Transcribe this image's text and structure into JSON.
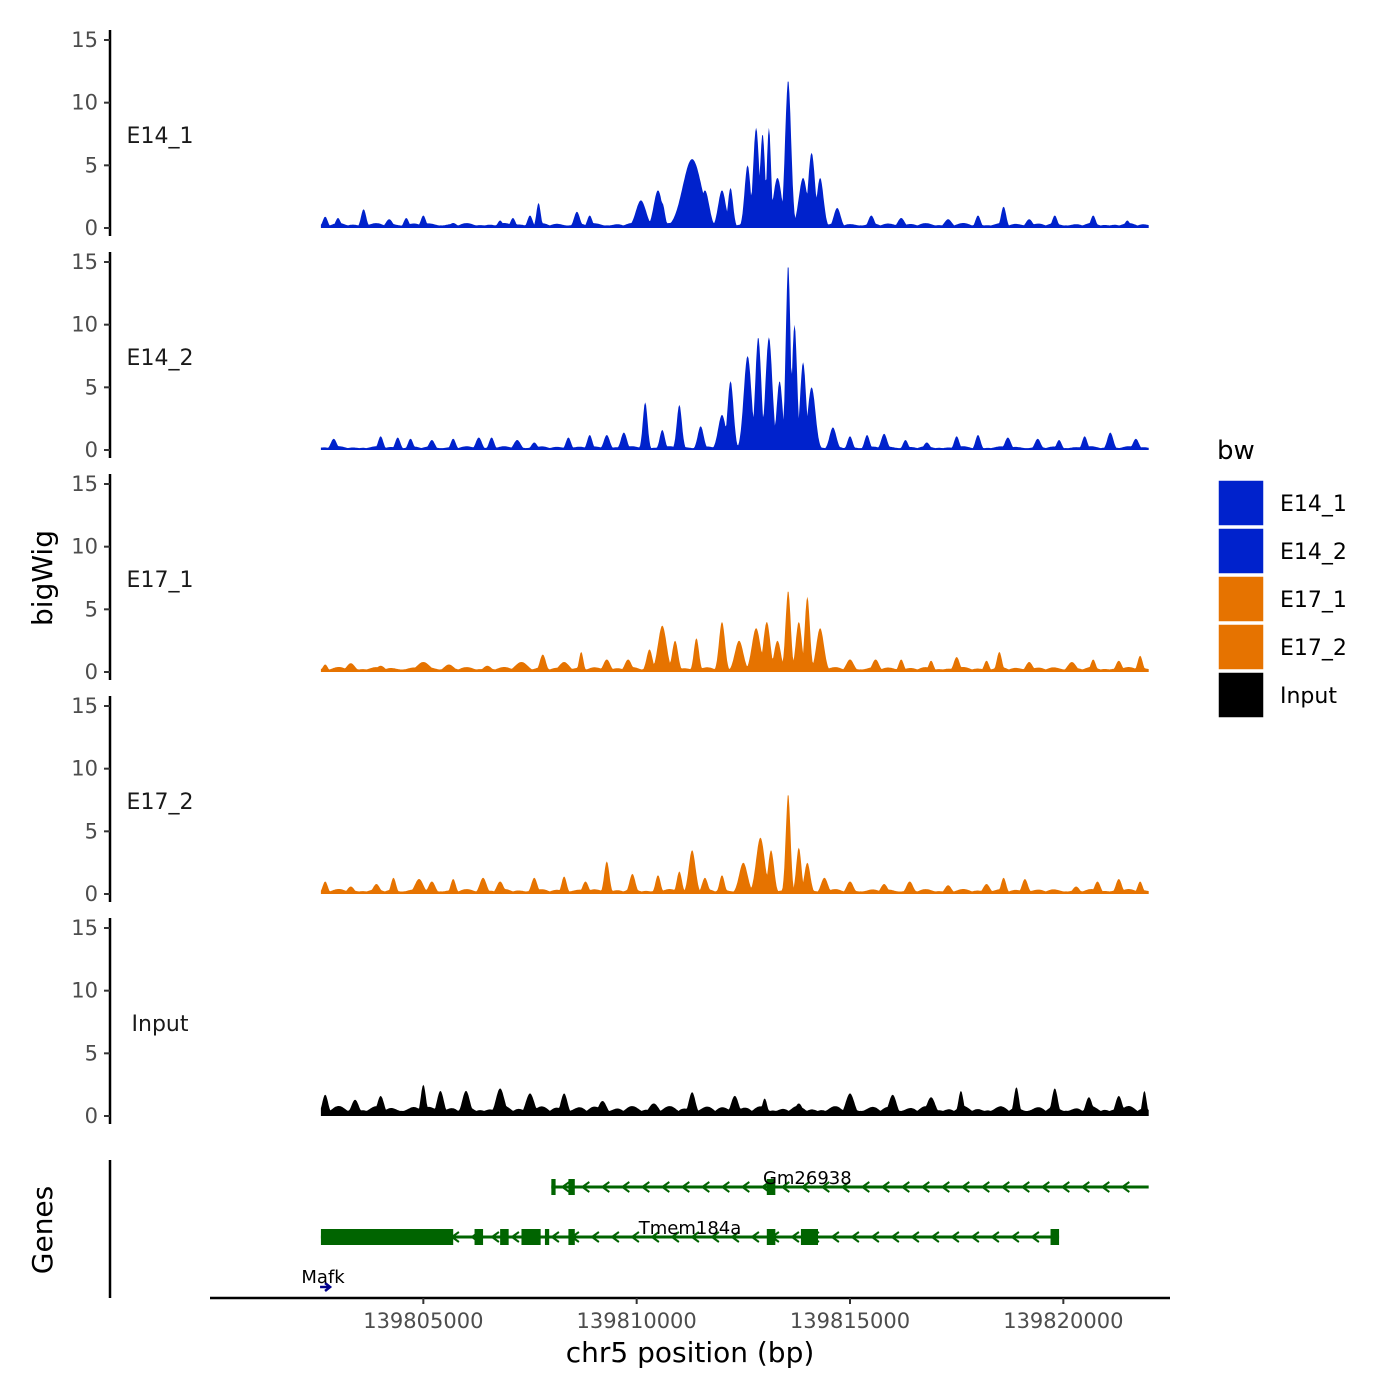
{
  "chart_data": {
    "type": "area",
    "title": "",
    "ylabel": "bigWig",
    "xlabel": "chr5 position (bp)",
    "genes_label": "Genes",
    "xlim": [
      139800000,
      139822500
    ],
    "data_xlim": [
      139802600,
      139822000
    ],
    "ylim": [
      0,
      15
    ],
    "y_ticks": [
      0,
      5,
      10,
      15
    ],
    "y_tick_labels": [
      "0",
      "5",
      "10",
      "15"
    ],
    "x_ticks": [
      139805000,
      139810000,
      139815000,
      139820000
    ],
    "x_tick_labels": [
      "139805000",
      "139810000",
      "139815000",
      "139820000"
    ],
    "tracks": [
      {
        "name": "E14_1",
        "color": "#0022CC",
        "baseline": 0.4,
        "peaks": [
          [
            139802700,
            0.9,
            60
          ],
          [
            139803000,
            0.8,
            60
          ],
          [
            139803600,
            1.5,
            60
          ],
          [
            139804200,
            0.7,
            80
          ],
          [
            139804600,
            0.8,
            60
          ],
          [
            139805000,
            1.0,
            60
          ],
          [
            139805700,
            0.4,
            90
          ],
          [
            139806800,
            0.6,
            60
          ],
          [
            139807100,
            0.8,
            60
          ],
          [
            139807500,
            1.0,
            60
          ],
          [
            139807700,
            2.0,
            50
          ],
          [
            139808600,
            1.3,
            70
          ],
          [
            139808900,
            1.0,
            60
          ],
          [
            139810100,
            2.2,
            120
          ],
          [
            139810500,
            3.0,
            100
          ],
          [
            139810600,
            2.0,
            60
          ],
          [
            139811300,
            5.5,
            220
          ],
          [
            139811600,
            3.0,
            100
          ],
          [
            139812000,
            3.0,
            90
          ],
          [
            139812200,
            3.2,
            60
          ],
          [
            139812600,
            5.0,
            70
          ],
          [
            139812800,
            8.0,
            70
          ],
          [
            139812950,
            7.5,
            60
          ],
          [
            139813100,
            8.0,
            50
          ],
          [
            139813300,
            4.0,
            100
          ],
          [
            139813550,
            11.8,
            70
          ],
          [
            139813900,
            4.0,
            100
          ],
          [
            139814100,
            6.0,
            80
          ],
          [
            139814300,
            4.0,
            80
          ],
          [
            139814700,
            1.6,
            80
          ],
          [
            139815500,
            1.0,
            70
          ],
          [
            139816200,
            0.8,
            80
          ],
          [
            139817300,
            0.7,
            90
          ],
          [
            139818000,
            1.0,
            60
          ],
          [
            139818600,
            1.7,
            60
          ],
          [
            139819200,
            0.7,
            80
          ],
          [
            139819800,
            1.0,
            60
          ],
          [
            139820700,
            1.0,
            60
          ],
          [
            139821500,
            0.6,
            60
          ]
        ]
      },
      {
        "name": "E14_2",
        "color": "#0022CC",
        "baseline": 0.3,
        "peaks": [
          [
            139802900,
            0.9,
            70
          ],
          [
            139804000,
            1.1,
            60
          ],
          [
            139804400,
            1.0,
            60
          ],
          [
            139804700,
            0.9,
            60
          ],
          [
            139805200,
            0.8,
            70
          ],
          [
            139805700,
            0.9,
            60
          ],
          [
            139806300,
            1.0,
            70
          ],
          [
            139806600,
            1.0,
            60
          ],
          [
            139807200,
            0.8,
            80
          ],
          [
            139807600,
            0.6,
            70
          ],
          [
            139808400,
            1.0,
            60
          ],
          [
            139808900,
            1.2,
            60
          ],
          [
            139809300,
            1.2,
            70
          ],
          [
            139809700,
            1.4,
            70
          ],
          [
            139810200,
            3.8,
            55
          ],
          [
            139810600,
            1.6,
            60
          ],
          [
            139811000,
            3.6,
            60
          ],
          [
            139811500,
            1.9,
            70
          ],
          [
            139812000,
            2.8,
            90
          ],
          [
            139812200,
            5.5,
            70
          ],
          [
            139812600,
            7.5,
            90
          ],
          [
            139812850,
            9.0,
            70
          ],
          [
            139813100,
            9.0,
            80
          ],
          [
            139813350,
            5.5,
            70
          ],
          [
            139813550,
            14.8,
            55
          ],
          [
            139813700,
            10.0,
            60
          ],
          [
            139813900,
            7.0,
            70
          ],
          [
            139814100,
            5.0,
            90
          ],
          [
            139814600,
            1.8,
            80
          ],
          [
            139815000,
            1.1,
            60
          ],
          [
            139815400,
            1.2,
            60
          ],
          [
            139815800,
            1.3,
            70
          ],
          [
            139816300,
            0.8,
            60
          ],
          [
            139816800,
            0.6,
            70
          ],
          [
            139817500,
            1.1,
            60
          ],
          [
            139818000,
            1.2,
            60
          ],
          [
            139818700,
            1.0,
            70
          ],
          [
            139819400,
            0.9,
            70
          ],
          [
            139819900,
            0.8,
            60
          ],
          [
            139820500,
            1.1,
            60
          ],
          [
            139821100,
            1.4,
            70
          ],
          [
            139821700,
            0.9,
            70
          ]
        ]
      },
      {
        "name": "E17_1",
        "color": "#E67300",
        "baseline": 0.4,
        "peaks": [
          [
            139802700,
            0.6,
            60
          ],
          [
            139803300,
            0.7,
            100
          ],
          [
            139804000,
            0.5,
            100
          ],
          [
            139805000,
            0.8,
            150
          ],
          [
            139805600,
            0.6,
            120
          ],
          [
            139806500,
            0.5,
            100
          ],
          [
            139807300,
            0.8,
            150
          ],
          [
            139807800,
            1.4,
            70
          ],
          [
            139808300,
            0.8,
            120
          ],
          [
            139808700,
            1.6,
            50
          ],
          [
            139809300,
            1.0,
            80
          ],
          [
            139809800,
            1.0,
            80
          ],
          [
            139810300,
            1.8,
            70
          ],
          [
            139810600,
            3.7,
            100
          ],
          [
            139810900,
            2.5,
            70
          ],
          [
            139811400,
            2.7,
            60
          ],
          [
            139812000,
            4.0,
            70
          ],
          [
            139812400,
            2.5,
            100
          ],
          [
            139812800,
            3.5,
            100
          ],
          [
            139813050,
            4.0,
            80
          ],
          [
            139813300,
            2.5,
            80
          ],
          [
            139813550,
            6.5,
            60
          ],
          [
            139813800,
            4.0,
            70
          ],
          [
            139814000,
            6.0,
            60
          ],
          [
            139814300,
            3.5,
            90
          ],
          [
            139815000,
            1.0,
            90
          ],
          [
            139815600,
            1.0,
            80
          ],
          [
            139816200,
            1.0,
            60
          ],
          [
            139816900,
            0.9,
            60
          ],
          [
            139817500,
            1.2,
            70
          ],
          [
            139818200,
            0.9,
            60
          ],
          [
            139818500,
            1.6,
            60
          ],
          [
            139819200,
            0.8,
            80
          ],
          [
            139820200,
            0.8,
            100
          ],
          [
            139820700,
            1.0,
            60
          ],
          [
            139821300,
            0.9,
            70
          ],
          [
            139821800,
            1.3,
            60
          ]
        ]
      },
      {
        "name": "E17_2",
        "color": "#E67300",
        "baseline": 0.4,
        "peaks": [
          [
            139802700,
            1.0,
            60
          ],
          [
            139803300,
            0.6,
            80
          ],
          [
            139803900,
            0.8,
            80
          ],
          [
            139804300,
            1.3,
            60
          ],
          [
            139804900,
            1.2,
            100
          ],
          [
            139805200,
            1.0,
            80
          ],
          [
            139805700,
            1.2,
            60
          ],
          [
            139806400,
            1.3,
            80
          ],
          [
            139806800,
            1.0,
            80
          ],
          [
            139807600,
            1.3,
            70
          ],
          [
            139808300,
            1.4,
            60
          ],
          [
            139808800,
            1.0,
            70
          ],
          [
            139809300,
            2.6,
            60
          ],
          [
            139809900,
            1.6,
            70
          ],
          [
            139810500,
            1.5,
            60
          ],
          [
            139811000,
            1.8,
            60
          ],
          [
            139811300,
            3.5,
            80
          ],
          [
            139811600,
            1.3,
            70
          ],
          [
            139812000,
            1.5,
            60
          ],
          [
            139812500,
            2.5,
            100
          ],
          [
            139812900,
            4.5,
            100
          ],
          [
            139813150,
            3.5,
            70
          ],
          [
            139813550,
            8.0,
            55
          ],
          [
            139813800,
            3.7,
            60
          ],
          [
            139814000,
            2.5,
            70
          ],
          [
            139814400,
            1.3,
            80
          ],
          [
            139815000,
            1.0,
            80
          ],
          [
            139815800,
            0.8,
            80
          ],
          [
            139816400,
            1.0,
            80
          ],
          [
            139817300,
            0.7,
            80
          ],
          [
            139818200,
            0.8,
            80
          ],
          [
            139818600,
            1.3,
            60
          ],
          [
            139819100,
            1.2,
            70
          ],
          [
            139820300,
            0.6,
            80
          ],
          [
            139820800,
            1.0,
            70
          ],
          [
            139821300,
            1.2,
            70
          ],
          [
            139821800,
            1.0,
            60
          ]
        ]
      },
      {
        "name": "Input",
        "color": "#000000",
        "baseline": 0.8,
        "peaks": [
          [
            139802700,
            1.7,
            70
          ],
          [
            139803400,
            1.3,
            90
          ],
          [
            139804000,
            1.6,
            80
          ],
          [
            139805000,
            2.5,
            60
          ],
          [
            139805400,
            2.0,
            80
          ],
          [
            139806000,
            2.0,
            90
          ],
          [
            139806800,
            2.2,
            100
          ],
          [
            139807500,
            1.8,
            100
          ],
          [
            139808300,
            1.8,
            80
          ],
          [
            139809200,
            1.2,
            100
          ],
          [
            139810400,
            1.0,
            120
          ],
          [
            139811300,
            1.9,
            80
          ],
          [
            139812300,
            1.6,
            90
          ],
          [
            139813000,
            1.4,
            60
          ],
          [
            139813800,
            1.0,
            90
          ],
          [
            139815000,
            1.8,
            100
          ],
          [
            139816000,
            1.7,
            90
          ],
          [
            139816900,
            1.5,
            100
          ],
          [
            139817600,
            2.0,
            60
          ],
          [
            139818900,
            2.3,
            60
          ],
          [
            139819800,
            2.2,
            70
          ],
          [
            139820600,
            1.5,
            80
          ],
          [
            139821300,
            1.6,
            80
          ],
          [
            139821900,
            2.0,
            50
          ]
        ]
      }
    ],
    "genes": [
      {
        "name": "Gm26938",
        "strand": "-",
        "color": "#006400",
        "row": 0,
        "start": 139808000,
        "end": 139822000,
        "label_pos": 139814000,
        "exons": [
          [
            139808000,
            139808100
          ],
          [
            139808400,
            139808550
          ],
          [
            139813050,
            139813250
          ]
        ]
      },
      {
        "name": "Tmem184a",
        "strand": "-",
        "color": "#006400",
        "row": 1,
        "start": 139802600,
        "end": 139819900,
        "label_pos": 139811250,
        "exons": [
          [
            139802600,
            139805700
          ],
          [
            139806200,
            139806400
          ],
          [
            139806800,
            139807000
          ],
          [
            139807300,
            139807750
          ],
          [
            139807850,
            139807950
          ],
          [
            139808400,
            139808550
          ],
          [
            139813050,
            139813250
          ],
          [
            139813850,
            139814250
          ],
          [
            139819700,
            139819900
          ]
        ]
      },
      {
        "name": "Mafk",
        "strand": "+",
        "color": "#00008B",
        "row": 2,
        "start": 139802650,
        "end": 139802950,
        "label_pos": 139802650,
        "exons": []
      }
    ],
    "legend": {
      "title": "bw",
      "position": "right",
      "items": [
        {
          "label": "E14_1",
          "color": "#0022CC"
        },
        {
          "label": "E14_2",
          "color": "#0022CC"
        },
        {
          "label": "E17_1",
          "color": "#E67300"
        },
        {
          "label": "E17_2",
          "color": "#E67300"
        },
        {
          "label": "Input",
          "color": "#000000"
        }
      ]
    }
  }
}
